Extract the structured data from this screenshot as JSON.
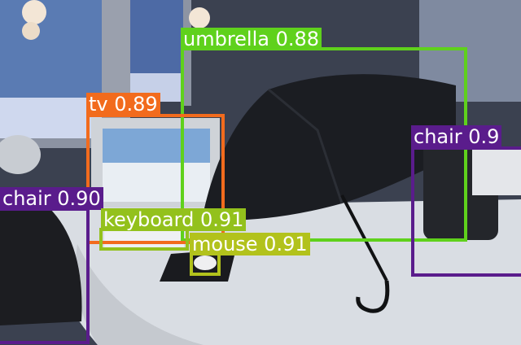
{
  "detections": [
    {
      "label": "umbrella 0.88",
      "class": "umbrella",
      "score": "0.88",
      "color": "#5fd11c"
    },
    {
      "label": "tv 0.89",
      "class": "tv",
      "score": "0.89",
      "color": "#f26b1d"
    },
    {
      "label": "chair 0.9",
      "class": "chair",
      "score": "0.9",
      "color": "#5a1c8c"
    },
    {
      "label": "chair 0.90",
      "class": "chair",
      "score": "0.90",
      "color": "#5a1c8c"
    },
    {
      "label": "keyboard 0.91",
      "class": "keyboard",
      "score": "0.91",
      "color": "#93c11c"
    },
    {
      "label": "mouse 0.91",
      "class": "mouse",
      "score": "0.91",
      "color": "#b2c21c"
    }
  ]
}
